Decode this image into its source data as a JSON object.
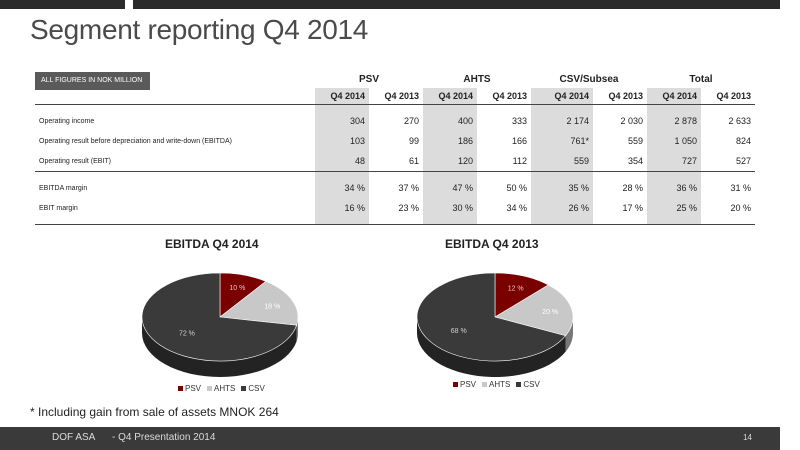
{
  "title": "Segment reporting Q4 2014",
  "table": {
    "note": "ALL FIGURES IN NOK MILLION",
    "groups": [
      "PSV",
      "AHTS",
      "CSV/Subsea",
      "Total"
    ],
    "periods": [
      "Q4 2014",
      "Q4 2013"
    ],
    "rows": [
      {
        "label": "Operating income",
        "values": [
          "304",
          "270",
          "400",
          "333",
          "2 174",
          "2 030",
          "2 878",
          "2 633"
        ]
      },
      {
        "label": "Operating result before depreciation and write-down (EBITDA)",
        "values": [
          "103",
          "99",
          "186",
          "166",
          "761*",
          "559",
          "1 050",
          "824"
        ]
      },
      {
        "label": "Operating result (EBIT)",
        "values": [
          "48",
          "61",
          "120",
          "112",
          "559",
          "354",
          "727",
          "527"
        ]
      },
      {
        "label": "EBITDA margin",
        "values": [
          "34 %",
          "37 %",
          "47 %",
          "50 %",
          "35 %",
          "28 %",
          "36 %",
          "31 %"
        ]
      },
      {
        "label": "EBIT margin",
        "values": [
          "16 %",
          "23 %",
          "30 %",
          "34 %",
          "26 %",
          "17 %",
          "25 %",
          "20 %"
        ]
      }
    ]
  },
  "chart_data": [
    {
      "type": "pie",
      "title": "EBITDA Q4 2014",
      "categories": [
        "PSV",
        "AHTS",
        "CSV"
      ],
      "values": [
        10,
        18,
        72
      ],
      "labels": [
        "10 %",
        "18 %",
        "72 %"
      ],
      "colors": [
        "#7a0000",
        "#c8c8c8",
        "#3a3a3a"
      ],
      "legend": "bottom"
    },
    {
      "type": "pie",
      "title": "EBITDA Q4 2013",
      "categories": [
        "PSV",
        "AHTS",
        "CSV"
      ],
      "values": [
        12,
        20,
        68
      ],
      "labels": [
        "12 %",
        "20 %",
        "68 %"
      ],
      "colors": [
        "#7a0000",
        "#c8c8c8",
        "#3a3a3a"
      ],
      "legend": "bottom"
    }
  ],
  "footnote": "* Including gain from sale of assets MNOK 264",
  "footer": {
    "company": "DOF ASA",
    "presentation": "- Q4 Presentation 2014",
    "page": "14"
  }
}
